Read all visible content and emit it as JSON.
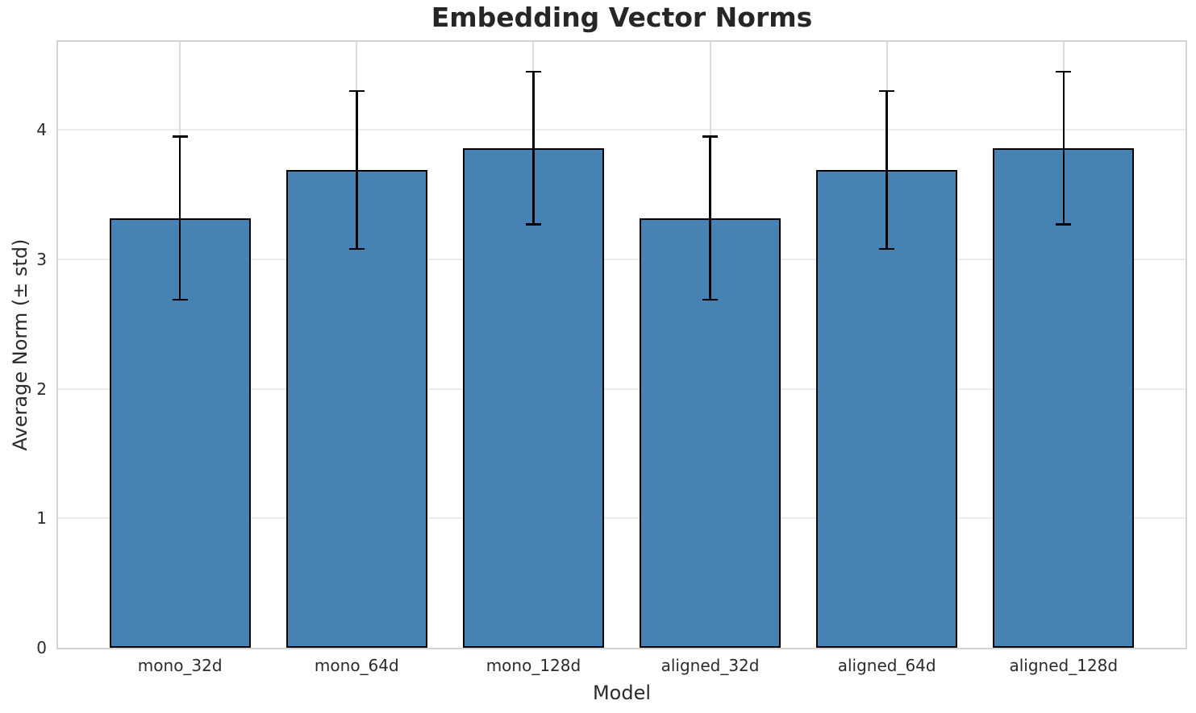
{
  "chart_data": {
    "type": "bar",
    "title": "Embedding Vector Norms",
    "xlabel": "Model",
    "ylabel": "Average Norm (± std)",
    "categories": [
      "mono_32d",
      "mono_64d",
      "mono_128d",
      "aligned_32d",
      "aligned_64d",
      "aligned_128d"
    ],
    "series": [
      {
        "name": "Average Norm",
        "values": [
          3.32,
          3.69,
          3.86,
          3.32,
          3.69,
          3.86
        ],
        "errors": [
          0.63,
          0.61,
          0.59,
          0.63,
          0.61,
          0.59
        ]
      }
    ],
    "yticks": [
      0,
      1,
      2,
      3,
      4
    ],
    "ylim": [
      0,
      4.68
    ],
    "xlim": [
      -0.69,
      5.69
    ],
    "bar_width": 0.8,
    "grid": true,
    "legend": false,
    "colors": {
      "bar_fill": "#4682b4",
      "bar_edge": "#000000",
      "error_bar": "#000000",
      "grid_horizontal": "#ececec",
      "grid_vertical": "#dcdcdc",
      "spine": "#d4d4d4",
      "title_text": "#262626",
      "axis_text": "#2b2b2b",
      "background": "#ffffff"
    }
  }
}
